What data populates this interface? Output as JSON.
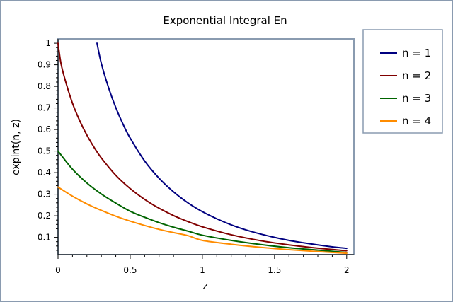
{
  "chart_data": {
    "type": "line",
    "title": "Exponential Integral En",
    "xlabel": "z",
    "ylabel": "expint(n, z)",
    "xlim": [
      0,
      2.05
    ],
    "ylim": [
      0.02,
      1.02
    ],
    "xticks": [
      "0",
      "0.5",
      "1",
      "1.5",
      "2"
    ],
    "xtick_values": [
      0,
      0.5,
      1,
      1.5,
      2
    ],
    "yticks": [
      "0.1",
      "0.2",
      "0.3",
      "0.4",
      "0.5",
      "0.6",
      "0.7",
      "0.8",
      "0.9",
      "1"
    ],
    "ytick_values": [
      0.1,
      0.2,
      0.3,
      0.4,
      0.5,
      0.6,
      0.7,
      0.8,
      0.9,
      1.0
    ],
    "grid": false,
    "legend_position": "right",
    "series": [
      {
        "name": "n = 1",
        "color": "#000080",
        "x": [
          0.27,
          0.3,
          0.35,
          0.4,
          0.45,
          0.5,
          0.6,
          0.7,
          0.8,
          0.9,
          1.0,
          1.1,
          1.2,
          1.3,
          1.4,
          1.5,
          1.6,
          1.7,
          1.8,
          1.9,
          2.0
        ],
        "y": [
          1.0,
          0.906,
          0.794,
          0.702,
          0.625,
          0.56,
          0.454,
          0.374,
          0.311,
          0.26,
          0.219,
          0.186,
          0.158,
          0.135,
          0.116,
          0.1,
          0.086,
          0.075,
          0.065,
          0.056,
          0.049
        ]
      },
      {
        "name": "n = 2",
        "color": "#800000",
        "x": [
          0.0,
          0.02,
          0.05,
          0.1,
          0.15,
          0.2,
          0.25,
          0.3,
          0.4,
          0.5,
          0.6,
          0.7,
          0.8,
          0.9,
          1.0,
          1.2,
          1.4,
          1.6,
          1.8,
          2.0
        ],
        "y": [
          1.0,
          0.907,
          0.828,
          0.722,
          0.641,
          0.574,
          0.517,
          0.468,
          0.388,
          0.326,
          0.276,
          0.235,
          0.201,
          0.173,
          0.149,
          0.112,
          0.085,
          0.065,
          0.05,
          0.038
        ]
      },
      {
        "name": "n = 3",
        "color": "#006400",
        "x": [
          0.0,
          0.1,
          0.2,
          0.3,
          0.4,
          0.5,
          0.6,
          0.7,
          0.8,
          0.9,
          1.0,
          1.2,
          1.4,
          1.6,
          1.8,
          2.0
        ],
        "y": [
          0.5,
          0.416,
          0.352,
          0.301,
          0.259,
          0.221,
          0.193,
          0.168,
          0.147,
          0.129,
          0.11,
          0.086,
          0.067,
          0.052,
          0.041,
          0.03
        ]
      },
      {
        "name": "n = 4",
        "color": "#ff8c00",
        "x": [
          0.0,
          0.1,
          0.2,
          0.3,
          0.4,
          0.5,
          0.6,
          0.7,
          0.8,
          0.9,
          1.0,
          1.2,
          1.4,
          1.6,
          1.8,
          2.0
        ],
        "y": [
          0.333,
          0.291,
          0.255,
          0.225,
          0.198,
          0.175,
          0.155,
          0.137,
          0.122,
          0.108,
          0.086,
          0.068,
          0.054,
          0.043,
          0.034,
          0.026
        ]
      }
    ]
  }
}
